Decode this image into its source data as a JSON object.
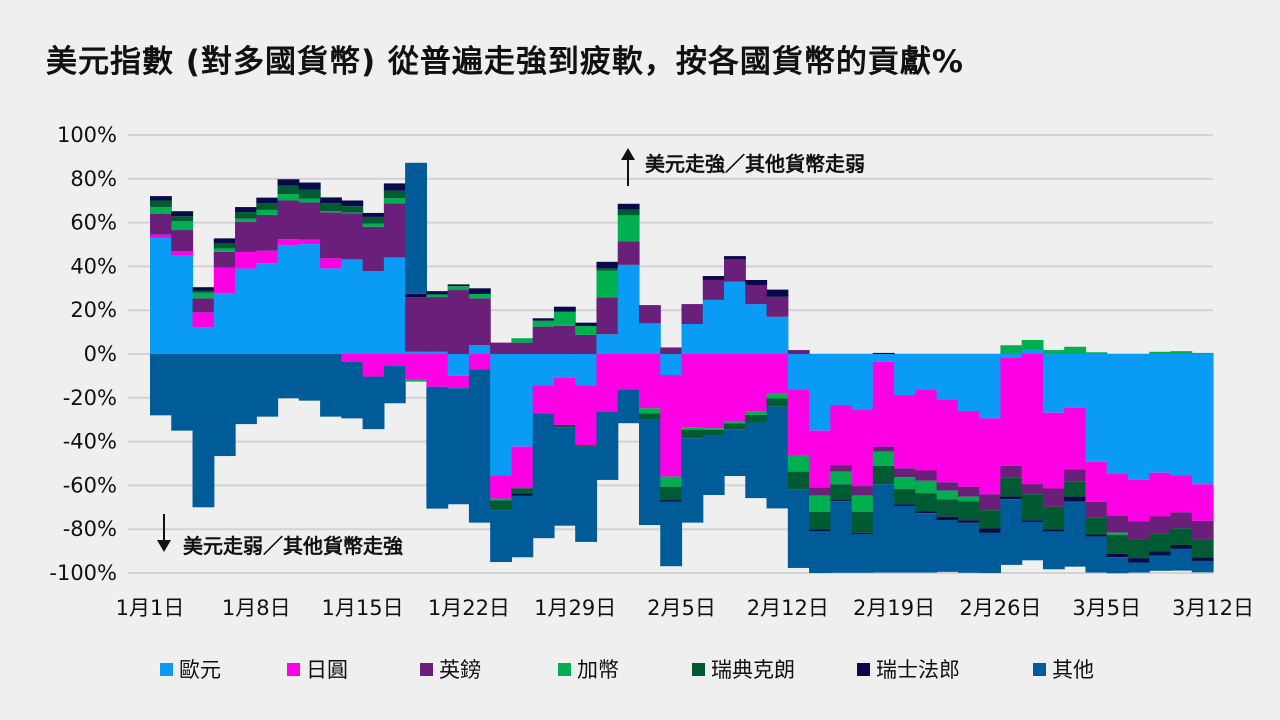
{
  "chart_data": {
    "type": "bar",
    "stacked": true,
    "title": "美元指數 (對多國貨幣) 從普遍走強到疲軟，按各國貨幣的貢獻%",
    "xlabel": "",
    "ylabel": "",
    "ylim": [
      -100,
      100
    ],
    "y_ticks": [
      100,
      80,
      60,
      40,
      20,
      0,
      -20,
      -40,
      -60,
      -80,
      -100
    ],
    "y_tick_labels": [
      "100%",
      "80%",
      "60%",
      "40%",
      "20%",
      "0%",
      "-20%",
      "-40%",
      "-60%",
      "-80%",
      "-100%"
    ],
    "x_tick_labels": [
      {
        "label": "1月1日",
        "index": 0
      },
      {
        "label": "1月8日",
        "index": 5
      },
      {
        "label": "1月15日",
        "index": 10
      },
      {
        "label": "1月22日",
        "index": 15
      },
      {
        "label": "1月29日",
        "index": 20
      },
      {
        "label": "2月5日",
        "index": 25
      },
      {
        "label": "2月12日",
        "index": 30
      },
      {
        "label": "2月19日",
        "index": 35
      },
      {
        "label": "2月26日",
        "index": 40
      },
      {
        "label": "3月5日",
        "index": 45
      },
      {
        "label": "3月12日",
        "index": 50
      }
    ],
    "grid": true,
    "legend_position": "bottom",
    "annotations": {
      "up": "美元走強／其他貨幣走弱",
      "down": "美元走弱／其他貨幣走強"
    },
    "series": [
      {
        "name": "歐元",
        "color": "#0a9cf5",
        "values": [
          53,
          45,
          12,
          27.7,
          39,
          41.4,
          49.8,
          50.2,
          39.1,
          43.2,
          37.9,
          44.1,
          1,
          1,
          -10,
          4.1,
          -55.3,
          -42.3,
          -14.2,
          -10.8,
          -14.2,
          9,
          40.7,
          14,
          -9.6,
          13.7,
          24.7,
          33,
          22.8,
          17,
          -16.1,
          -35,
          -23.3,
          -25.3,
          -3.5,
          -18.7,
          -16.1,
          -20.7,
          -26,
          -29.4,
          -1.5,
          1.8,
          -26.8,
          -24.5,
          -49.2,
          -54.8,
          -57.5,
          -54.2,
          -55.3,
          -59.5
        ]
      },
      {
        "name": "日圓",
        "color": "#ff00e6",
        "values": [
          1.5,
          2,
          7,
          11.7,
          7.6,
          5.8,
          2.6,
          2.1,
          4.6,
          -3.5,
          -10.3,
          -5.5,
          -11.6,
          -15,
          -5.6,
          -7,
          -10.7,
          -19,
          -12.9,
          -21.6,
          -27.4,
          -26.3,
          -16.1,
          -24.8,
          -46.4,
          -33.5,
          -33.9,
          -30.9,
          -26.3,
          -18,
          -30,
          -26,
          -27.4,
          -35,
          -38.8,
          -33.5,
          -37.1,
          -37.9,
          -34.6,
          -34.7,
          -49.6,
          -59.4,
          -34.6,
          -28.2,
          -18.3,
          -19,
          -19,
          -20,
          -17,
          -16.7
        ]
      },
      {
        "name": "英鎊",
        "color": "#6a1f7a",
        "values": [
          9.6,
          9.6,
          6.4,
          7.3,
          13.7,
          16.3,
          17.7,
          16.9,
          21,
          21,
          20.2,
          24.7,
          25,
          25,
          29.2,
          21.3,
          5.2,
          5.2,
          12.5,
          12.9,
          8.7,
          16.9,
          10.7,
          8,
          3,
          9.1,
          9.1,
          10.2,
          8.7,
          9.1,
          1.8,
          -3.7,
          -3,
          -4.4,
          -2.3,
          -4.1,
          -4.7,
          -3.8,
          -4.6,
          -7.2,
          -5.2,
          -4.6,
          -8.4,
          -5.6,
          -7.3,
          -7.8,
          -8,
          -7.6,
          -7.3,
          -8.7
        ]
      },
      {
        "name": "加幣",
        "color": "#00b050",
        "values": [
          3,
          4,
          2.6,
          1.5,
          1.5,
          2.3,
          2.9,
          1.8,
          0.6,
          0.3,
          1.5,
          2.3,
          -1,
          1.2,
          1.8,
          2,
          -0.8,
          2,
          2.7,
          6.4,
          4.1,
          12.2,
          11.9,
          -2.3,
          -4.6,
          -1.2,
          -0.8,
          -0.8,
          -1.5,
          -2.3,
          -7.6,
          -7.3,
          -5.8,
          -7.3,
          -6.5,
          -5.3,
          -5.6,
          -4,
          -2,
          0,
          4,
          4.6,
          1.8,
          3.3,
          0.8,
          -1,
          0,
          1,
          1.3,
          0.5
        ]
      },
      {
        "name": "瑞典克朗",
        "color": "#005a32",
        "values": [
          3,
          2.3,
          1,
          2.3,
          3,
          3,
          3.8,
          4.1,
          3.5,
          3,
          3,
          3.5,
          0,
          0,
          0,
          0,
          -4.6,
          -2.3,
          0,
          -1,
          -0.8,
          1,
          2.6,
          -3,
          -6.1,
          -3.8,
          -2.3,
          -2.7,
          -3.5,
          -3.8,
          -8,
          -8,
          -7.2,
          -9.6,
          -8.4,
          -7,
          -8.4,
          -7.9,
          -8.7,
          -8.4,
          -8.8,
          -11.9,
          -10.3,
          -6.8,
          -7.6,
          -8.7,
          -8.7,
          -8.4,
          -7.6,
          -7.9
        ]
      },
      {
        "name": "瑞士法郎",
        "color": "#0a0a4a",
        "values": [
          2,
          2.3,
          1.5,
          2.3,
          2.3,
          2.6,
          3,
          3.2,
          2.7,
          2.6,
          1.8,
          3.3,
          1.5,
          1.5,
          0.8,
          2.6,
          0,
          -1.2,
          1.1,
          2.3,
          1.5,
          3,
          2.7,
          0.3,
          -0.8,
          0,
          1.8,
          1.5,
          2.3,
          3.3,
          0,
          -1,
          -0.5,
          -0.6,
          0.5,
          -0.8,
          -0.8,
          -1.5,
          -1.2,
          -2,
          -1.2,
          -0.8,
          -1,
          -2.3,
          -1,
          -1.5,
          -2,
          -1.8,
          -1.8,
          -1.7
        ]
      },
      {
        "name": "其他",
        "color": "#005c99",
        "values": [
          -28,
          -35,
          -70,
          -46.6,
          -32,
          -28.6,
          -20.2,
          -21.3,
          -28.6,
          -25.9,
          -24,
          -17,
          59.8,
          -55.6,
          -53,
          -70,
          -23.6,
          -28,
          -57,
          -45,
          -43.4,
          -31.2,
          -15.5,
          -48,
          -29.4,
          -38.5,
          -27.4,
          -21.3,
          -34.5,
          -46.4,
          -36,
          -19,
          -32.7,
          -17.7,
          -40.3,
          -30.4,
          -27.1,
          -23.7,
          -22.8,
          -18.3,
          -30,
          -17.5,
          -17.2,
          -29.7,
          -16.4,
          -7.3,
          -4.6,
          -7,
          -9.9,
          -5.2
        ]
      }
    ]
  }
}
